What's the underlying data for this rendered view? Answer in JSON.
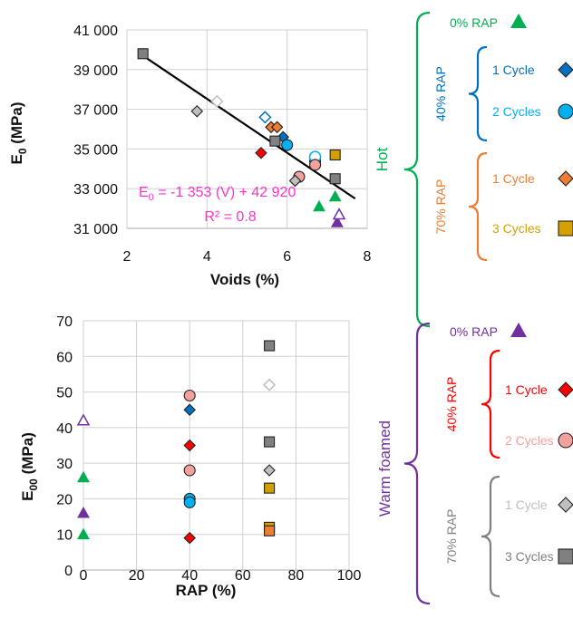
{
  "colors": {
    "hot": "#00b050",
    "warm": "#7030a0",
    "rap40_hot": "#0070c0",
    "rap70_hot": "#ed7d31",
    "rap40_warm": "#ff0000",
    "rap70_warm": "#808080",
    "equation": "#ff33cc",
    "c0_hot": "#00b050",
    "c40_1_hot": "#0070c0",
    "c40_2_hot": "#00b0f0",
    "c70_1_hot": "#ed7d31",
    "c70_3_hot": "#d4a000",
    "c0_warm": "#7030a0",
    "c40_1_warm": "#ff0000",
    "c40_2_warm": "#f4a09c",
    "c70_1_warm": "#bfbfbf",
    "c70_3_warm": "#808080"
  },
  "chart_data": [
    {
      "type": "scatter",
      "title": "",
      "xlabel": "Voids (%)",
      "ylabel": "E0 (MPa)",
      "ylabel_main": "E",
      "ylabel_sub": "0",
      "ylabel_unit": " (MPa)",
      "xlim": [
        2,
        8
      ],
      "ylim": [
        31000,
        41000
      ],
      "xticks": [
        2,
        4,
        6,
        8
      ],
      "xtick_labels": [
        "2",
        "4",
        "6",
        "8"
      ],
      "yticks": [
        31000,
        33000,
        35000,
        37000,
        39000,
        41000
      ],
      "ytick_labels": [
        "31 000",
        "33 000",
        "35 000",
        "37 000",
        "39 000",
        "41 000"
      ],
      "grid": true,
      "trendline": {
        "x": [
          2.4,
          7.7
        ],
        "y": [
          39700,
          32500
        ]
      },
      "equation": "E0 = -1 353 (V) + 42 920",
      "equation_main": "E",
      "equation_sub": "0",
      "equation_rest": " = -1 353 (V) + 42 920",
      "r2": "R² = 0.8",
      "series": [
        {
          "color_key": "c0_hot",
          "marker": "triangle",
          "fill": true,
          "points": [
            [
              6.8,
              32100
            ],
            [
              7.2,
              32600
            ]
          ]
        },
        {
          "color_key": "c0_warm",
          "marker": "triangle",
          "fill": true,
          "points": [
            [
              7.25,
              31300
            ]
          ]
        },
        {
          "color_key": "c0_warm",
          "marker": "triangle",
          "fill": false,
          "points": [
            [
              7.3,
              31700
            ]
          ]
        },
        {
          "color_key": "c40_1_hot",
          "marker": "diamond",
          "fill": false,
          "points": [
            [
              5.45,
              36600
            ]
          ]
        },
        {
          "color_key": "c40_1_hot",
          "marker": "diamond",
          "fill": true,
          "points": [
            [
              5.9,
              35600
            ]
          ]
        },
        {
          "color_key": "c40_2_hot",
          "marker": "circle",
          "fill": true,
          "points": [
            [
              6.0,
              35200
            ],
            [
              6.7,
              34400
            ]
          ]
        },
        {
          "color_key": "c40_2_hot",
          "marker": "circle",
          "fill": false,
          "points": [
            [
              6.7,
              34600
            ]
          ]
        },
        {
          "color_key": "c70_1_hot",
          "marker": "diamond",
          "fill": true,
          "points": [
            [
              5.6,
              36100
            ],
            [
              5.75,
              36100
            ]
          ]
        },
        {
          "color_key": "c70_3_hot",
          "marker": "square",
          "fill": true,
          "points": [
            [
              7.2,
              34700
            ]
          ]
        },
        {
          "color_key": "c40_1_warm",
          "marker": "diamond",
          "fill": true,
          "points": [
            [
              5.35,
              34800
            ]
          ]
        },
        {
          "color_key": "c40_2_warm",
          "marker": "circle",
          "fill": true,
          "points": [
            [
              6.3,
              33600
            ],
            [
              6.7,
              34200
            ]
          ]
        },
        {
          "color_key": "c70_1_warm",
          "marker": "diamond",
          "fill": false,
          "points": [
            [
              4.25,
              37400
            ]
          ]
        },
        {
          "color_key": "c70_1_warm",
          "marker": "diamond",
          "fill": true,
          "points": [
            [
              3.75,
              36900
            ],
            [
              6.2,
              33400
            ]
          ]
        },
        {
          "color_key": "c70_3_warm",
          "marker": "square",
          "fill": true,
          "points": [
            [
              2.4,
              39800
            ],
            [
              5.7,
              35400
            ],
            [
              7.2,
              33500
            ]
          ]
        }
      ]
    },
    {
      "type": "scatter",
      "title": "",
      "xlabel": "RAP (%)",
      "ylabel": "E00 (MPa)",
      "ylabel_main": "E",
      "ylabel_sub": "00",
      "ylabel_unit": " (MPa)",
      "xlim": [
        0,
        100
      ],
      "ylim": [
        0,
        70
      ],
      "xticks": [
        0,
        20,
        40,
        60,
        80,
        100
      ],
      "xtick_labels": [
        "0",
        "20",
        "40",
        "60",
        "80",
        "100"
      ],
      "yticks": [
        0,
        10,
        20,
        30,
        40,
        50,
        60,
        70
      ],
      "ytick_labels": [
        "0",
        "10",
        "20",
        "30",
        "40",
        "50",
        "60",
        "70"
      ],
      "grid": true,
      "series": [
        {
          "color_key": "c0_warm",
          "marker": "triangle",
          "fill": false,
          "points": [
            [
              0,
              42
            ]
          ]
        },
        {
          "color_key": "c0_hot",
          "marker": "triangle",
          "fill": true,
          "points": [
            [
              0,
              26
            ],
            [
              0,
              10
            ]
          ]
        },
        {
          "color_key": "c0_warm",
          "marker": "triangle",
          "fill": true,
          "points": [
            [
              0,
              16
            ]
          ]
        },
        {
          "color_key": "c40_2_warm",
          "marker": "circle",
          "fill": true,
          "points": [
            [
              40,
              49
            ],
            [
              40,
              28
            ]
          ]
        },
        {
          "color_key": "c40_1_hot",
          "marker": "diamond",
          "fill": true,
          "points": [
            [
              40,
              45
            ]
          ]
        },
        {
          "color_key": "c40_1_warm",
          "marker": "diamond",
          "fill": true,
          "points": [
            [
              40,
              35
            ],
            [
              40,
              9
            ]
          ]
        },
        {
          "color_key": "c40_2_hot",
          "marker": "circle",
          "fill": true,
          "points": [
            [
              40,
              20
            ],
            [
              40,
              19
            ]
          ]
        },
        {
          "color_key": "c70_3_warm",
          "marker": "square",
          "fill": true,
          "points": [
            [
              70,
              63
            ],
            [
              70,
              36
            ]
          ]
        },
        {
          "color_key": "c70_1_warm",
          "marker": "diamond",
          "fill": false,
          "points": [
            [
              70,
              52
            ]
          ]
        },
        {
          "color_key": "c70_1_warm",
          "marker": "diamond",
          "fill": true,
          "points": [
            [
              70,
              28
            ]
          ]
        },
        {
          "color_key": "c70_3_hot",
          "marker": "square",
          "fill": true,
          "points": [
            [
              70,
              23
            ],
            [
              70,
              12
            ]
          ]
        },
        {
          "color_key": "c70_1_hot",
          "marker": "square",
          "fill": true,
          "points": [
            [
              70,
              11
            ]
          ]
        }
      ]
    }
  ],
  "legend": {
    "hot_label": "Hot",
    "warm_label": "Warm foamed",
    "hot": [
      {
        "text": "0% RAP",
        "color_key": "hot",
        "marker": "triangle",
        "marker_color_key": "c0_hot",
        "fill": true
      },
      {
        "group": "40% RAP",
        "group_color_key": "rap40_hot",
        "items": [
          {
            "text": "1 Cycle",
            "marker": "diamond",
            "marker_color_key": "c40_1_hot",
            "fill": true
          },
          {
            "text": "2 Cycles",
            "marker": "circle",
            "marker_color_key": "c40_2_hot",
            "fill": true
          }
        ]
      },
      {
        "group": "70% RAP",
        "group_color_key": "rap70_hot",
        "items": [
          {
            "text": "1 Cycle",
            "marker": "diamond",
            "marker_color_key": "c70_1_hot",
            "fill": true
          },
          {
            "text": "3 Cycles",
            "marker": "square",
            "marker_color_key": "c70_3_hot",
            "fill": true
          }
        ]
      }
    ],
    "warm": [
      {
        "text": "0% RAP",
        "color_key": "warm",
        "marker": "triangle",
        "marker_color_key": "c0_warm",
        "fill": true
      },
      {
        "group": "40% RAP",
        "group_color_key": "rap40_warm",
        "items": [
          {
            "text": "1 Cycle",
            "marker": "diamond",
            "marker_color_key": "c40_1_warm",
            "fill": true
          },
          {
            "text": "2 Cycles",
            "marker": "circle",
            "marker_color_key": "c40_2_warm",
            "fill": true
          }
        ]
      },
      {
        "group": "70% RAP",
        "group_color_key": "rap70_warm",
        "items": [
          {
            "text": "1 Cycle",
            "marker": "diamond",
            "marker_color_key": "c70_1_warm",
            "fill": true
          },
          {
            "text": "3 Cycles",
            "marker": "square",
            "marker_color_key": "c70_3_warm",
            "fill": true
          }
        ]
      }
    ]
  }
}
